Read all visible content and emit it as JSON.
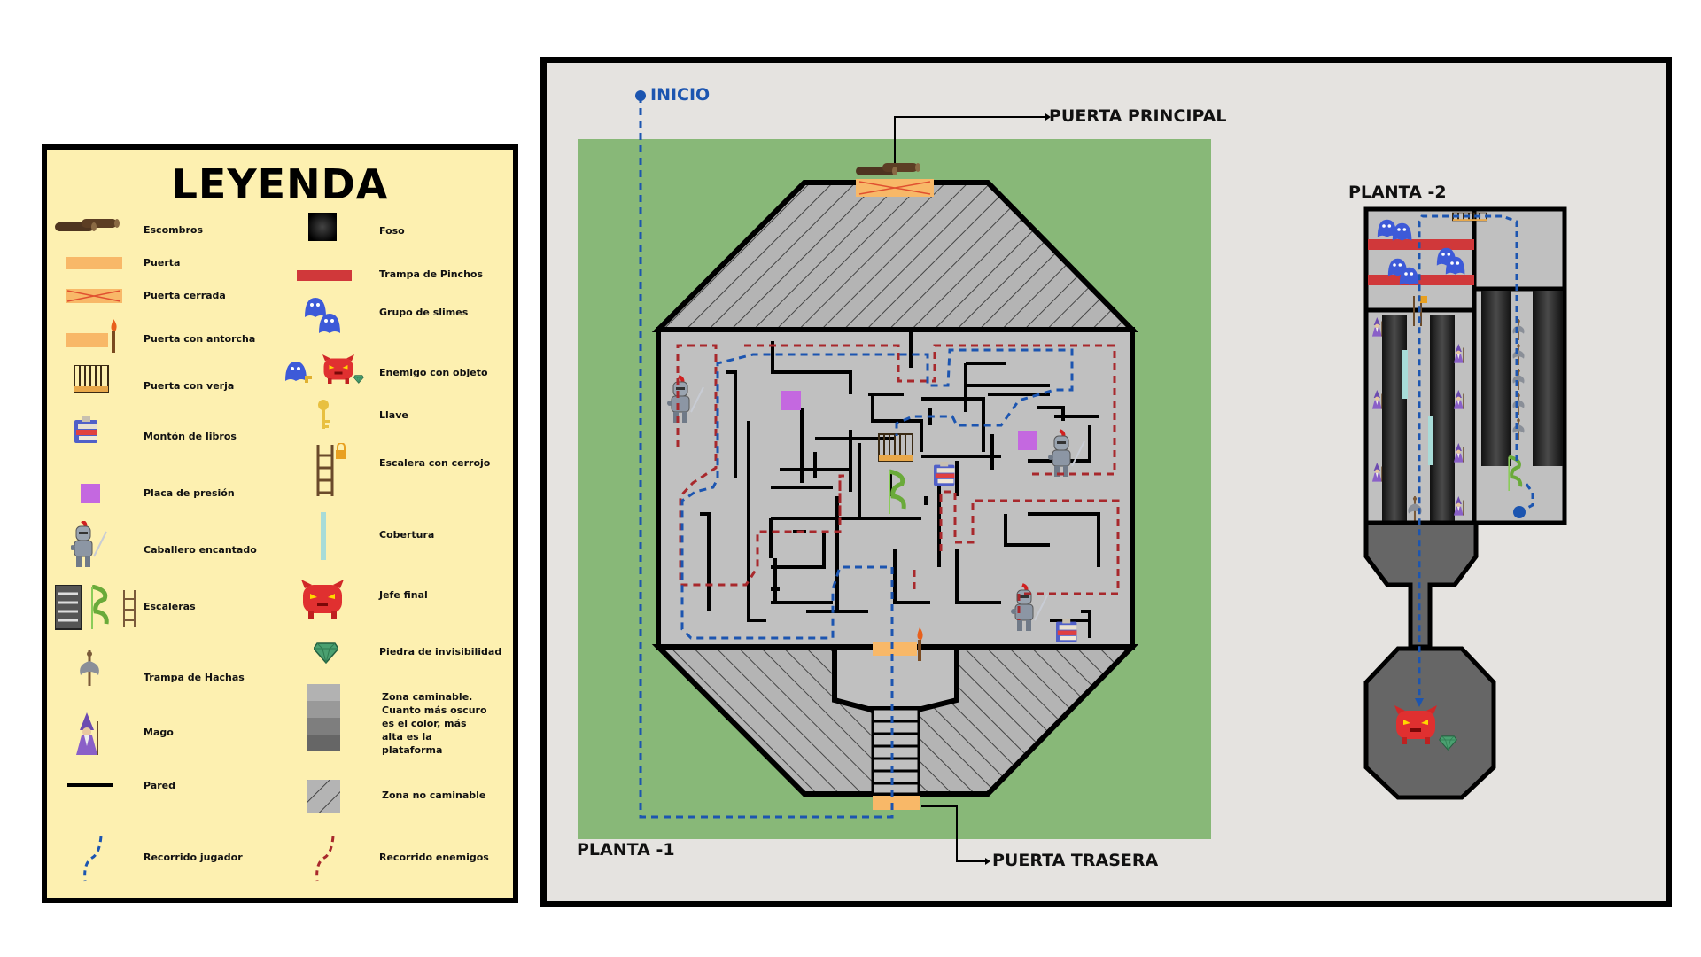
{
  "legend": {
    "title": "LEYENDA",
    "left_items": [
      {
        "label": "Escombros",
        "icon": "rubble-icon"
      },
      {
        "label": "Puerta",
        "icon": "door-icon"
      },
      {
        "label": "Puerta cerrada",
        "icon": "closed-door-icon"
      },
      {
        "label": "Puerta con antorcha",
        "icon": "torch-door-icon"
      },
      {
        "label": "Puerta con verja",
        "icon": "gate-door-icon"
      },
      {
        "label": "Montón de libros",
        "icon": "books-icon"
      },
      {
        "label": "Placa de presión",
        "icon": "pressure-plate-icon"
      },
      {
        "label": "Caballero encantado",
        "icon": "knight-icon"
      },
      {
        "label": "Escaleras",
        "icon": "stairs-icon"
      },
      {
        "label": "Trampa de Hachas",
        "icon": "axe-trap-icon"
      },
      {
        "label": "Mago",
        "icon": "wizard-icon"
      },
      {
        "label": "Pared",
        "icon": "wall-icon"
      },
      {
        "label": "Recorrido jugador",
        "icon": "player-path-icon"
      }
    ],
    "right_items": [
      {
        "label": "Foso",
        "icon": "pit-icon"
      },
      {
        "label": "Trampa de Pinchos",
        "icon": "spike-trap-icon"
      },
      {
        "label": "Grupo de slimes",
        "icon": "slime-group-icon"
      },
      {
        "label": "Enemigo con objeto",
        "icon": "enemy-with-item-icon"
      },
      {
        "label": "Llave",
        "icon": "key-icon"
      },
      {
        "label": "Escalera con cerrojo",
        "icon": "locked-ladder-icon"
      },
      {
        "label": "Cobertura",
        "icon": "cover-icon"
      },
      {
        "label": "Jefe final",
        "icon": "final-boss-icon"
      },
      {
        "label": "Piedra de invisibilidad",
        "icon": "invisibility-stone-icon"
      },
      {
        "label": "Zona caminable. Cuanto más oscuro es el color, más alta es la plataforma",
        "icon": "walkable-zone-icon"
      },
      {
        "label": "Zona no caminable",
        "icon": "non-walkable-zone-icon"
      },
      {
        "label": "Recorrido enemigos",
        "icon": "enemy-path-icon"
      }
    ]
  },
  "map": {
    "start_label": "INICIO",
    "main_door_label": "PUERTA PRINCIPAL",
    "back_door_label": "PUERTA TRASERA",
    "floor_minus1_label": "PLANTA -1",
    "floor_minus2_label": "PLANTA -2"
  },
  "colors": {
    "legend_bg": "#fdf0b0",
    "map_bg": "#e5e3e0",
    "grass": "#88b878",
    "floor": "#c0c0c0",
    "player_path": "#1c55b0",
    "enemy_path": "#a8282c",
    "door": "#f8b868",
    "spikes": "#d0383a",
    "pressure_plate": "#c468e0"
  }
}
